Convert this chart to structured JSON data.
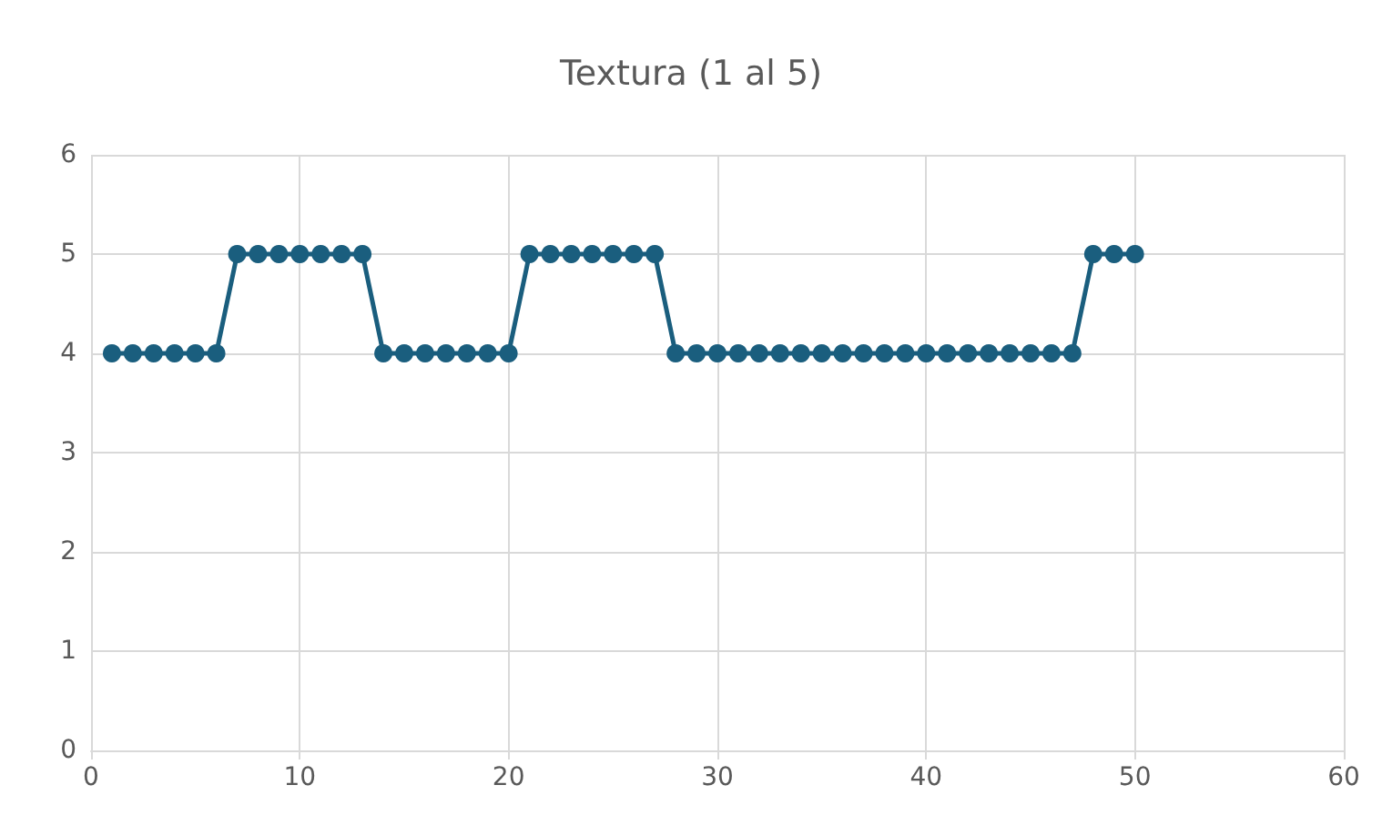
{
  "chart_data": {
    "type": "line",
    "title": "Textura (1 al 5)",
    "x": [
      1,
      2,
      3,
      4,
      5,
      6,
      7,
      8,
      9,
      10,
      11,
      12,
      13,
      14,
      15,
      16,
      17,
      18,
      19,
      20,
      21,
      22,
      23,
      24,
      25,
      26,
      27,
      28,
      29,
      30,
      31,
      32,
      33,
      34,
      35,
      36,
      37,
      38,
      39,
      40,
      41,
      42,
      43,
      44,
      45,
      46,
      47,
      48,
      49,
      50
    ],
    "series": [
      {
        "color": "#1a5e7e",
        "values": [
          4,
          4,
          4,
          4,
          4,
          4,
          5,
          5,
          5,
          5,
          5,
          5,
          5,
          4,
          4,
          4,
          4,
          4,
          4,
          4,
          5,
          5,
          5,
          5,
          5,
          5,
          5,
          4,
          4,
          4,
          4,
          4,
          4,
          4,
          4,
          4,
          4,
          4,
          4,
          4,
          4,
          4,
          4,
          4,
          4,
          4,
          4,
          5,
          5,
          5
        ]
      }
    ],
    "xlim": [
      0,
      60
    ],
    "xticks": [
      0,
      10,
      20,
      30,
      40,
      50,
      60
    ],
    "ylim": [
      0,
      6
    ],
    "yticks": [
      0,
      1,
      2,
      3,
      4,
      5,
      6
    ],
    "grid": true,
    "marker": "circle",
    "line_style": "solid"
  }
}
